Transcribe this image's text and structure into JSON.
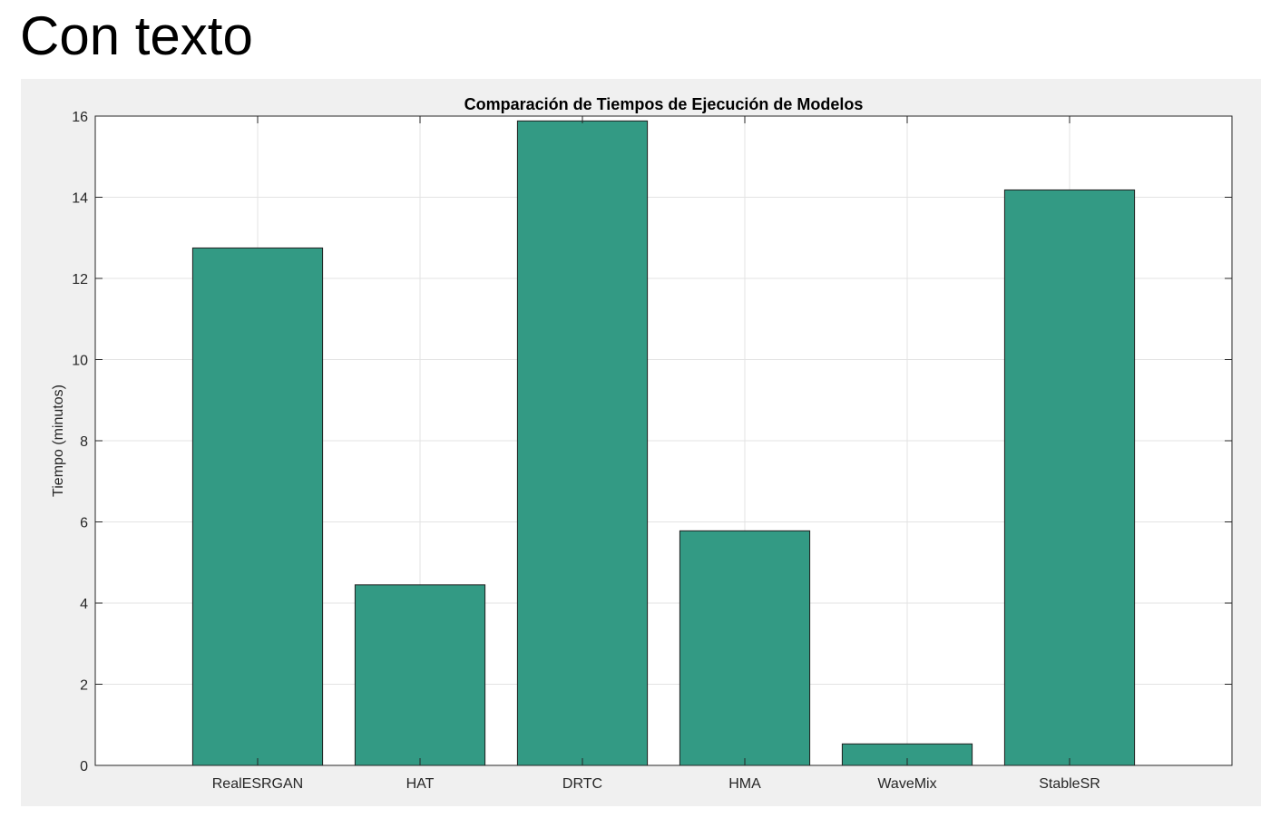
{
  "slide": {
    "heading": "Con texto"
  },
  "colors": {
    "bar_fill": "#339a84",
    "bar_edge": "#1f1f1f",
    "panel_background": "#f0f0f0",
    "axes_background": "#ffffff",
    "grid": "#e3e3e3",
    "axis": "#262626"
  },
  "chart_data": {
    "type": "bar",
    "title": "Comparación de Tiempos de Ejecución de Modelos",
    "xlabel": "",
    "ylabel": "Tiempo (minutos)",
    "categories": [
      "RealESRGAN",
      "HAT",
      "DRTC",
      "HMA",
      "WaveMix",
      "StableSR"
    ],
    "values": [
      12.75,
      4.45,
      15.88,
      5.78,
      0.53,
      14.18
    ],
    "ylim": [
      0,
      16
    ],
    "yticks": [
      0,
      2,
      4,
      6,
      8,
      10,
      12,
      14,
      16
    ],
    "xlim": [
      0,
      7
    ],
    "grid": true,
    "legend": "none"
  }
}
